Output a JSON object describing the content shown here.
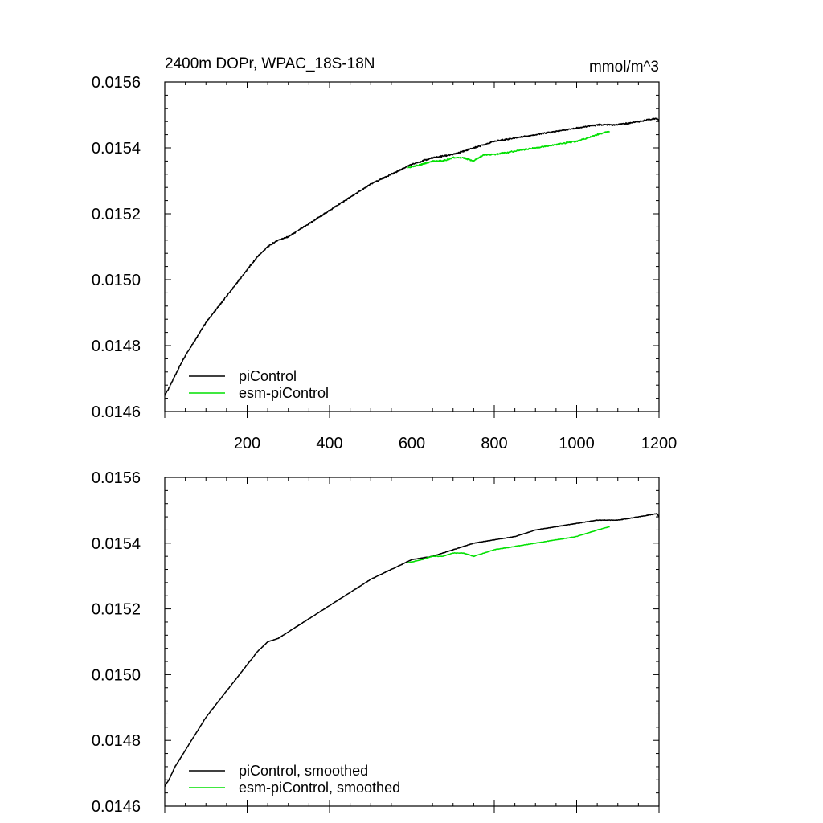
{
  "chart_data": [
    {
      "type": "line",
      "title": "2400m DOPr, WPAC_18S-18N",
      "units": "mmol/m^3",
      "xlim": [
        0,
        1200
      ],
      "ylim": [
        0.0146,
        0.0156
      ],
      "xticks": [
        "200",
        "400",
        "600",
        "800",
        "1000",
        "1200"
      ],
      "yticks": [
        "0.0146",
        "0.0148",
        "0.0150",
        "0.0152",
        "0.0154",
        "0.0156"
      ],
      "legend_position": "bottom-left",
      "series": [
        {
          "name": "piControl",
          "color": "#000000",
          "x": [
            0,
            10,
            25,
            50,
            75,
            100,
            125,
            150,
            175,
            200,
            225,
            250,
            275,
            300,
            350,
            400,
            450,
            500,
            550,
            600,
            650,
            700,
            750,
            800,
            850,
            900,
            950,
            1000,
            1050,
            1100,
            1150,
            1195,
            1200
          ],
          "y": [
            0.01465,
            0.01467,
            0.01471,
            0.01477,
            0.01482,
            0.01487,
            0.01491,
            0.01495,
            0.01499,
            0.01503,
            0.01507,
            0.0151,
            0.01512,
            0.01513,
            0.01517,
            0.01521,
            0.01525,
            0.01529,
            0.01532,
            0.01535,
            0.01537,
            0.01538,
            0.0154,
            0.01542,
            0.01543,
            0.01544,
            0.01545,
            0.01546,
            0.01547,
            0.01547,
            0.01548,
            0.01549,
            0.01548
          ]
        },
        {
          "name": "esm-piControl",
          "color": "#00e000",
          "x": [
            590,
            625,
            650,
            675,
            700,
            725,
            750,
            775,
            800,
            850,
            900,
            950,
            1000,
            1050,
            1080
          ],
          "y": [
            0.01534,
            0.01535,
            0.01536,
            0.01536,
            0.01537,
            0.01537,
            0.01536,
            0.01538,
            0.01538,
            0.01539,
            0.0154,
            0.01541,
            0.01542,
            0.01544,
            0.01545
          ]
        }
      ]
    },
    {
      "type": "line",
      "title": "",
      "xlim": [
        0,
        1200
      ],
      "ylim": [
        0.0146,
        0.0156
      ],
      "yticks": [
        "0.0146",
        "0.0148",
        "0.0150",
        "0.0152",
        "0.0154",
        "0.0156"
      ],
      "legend_position": "bottom-left",
      "series": [
        {
          "name": "piControl, smoothed",
          "color": "#000000",
          "x": [
            0,
            10,
            25,
            50,
            75,
            100,
            125,
            150,
            175,
            200,
            225,
            250,
            275,
            300,
            350,
            400,
            450,
            500,
            550,
            600,
            650,
            700,
            750,
            800,
            850,
            900,
            950,
            1000,
            1050,
            1100,
            1150,
            1195,
            1200
          ],
          "y": [
            0.01466,
            0.01468,
            0.01472,
            0.01477,
            0.01482,
            0.01487,
            0.01491,
            0.01495,
            0.01499,
            0.01503,
            0.01507,
            0.0151,
            0.01511,
            0.01513,
            0.01517,
            0.01521,
            0.01525,
            0.01529,
            0.01532,
            0.01535,
            0.01536,
            0.01538,
            0.0154,
            0.01541,
            0.01542,
            0.01544,
            0.01545,
            0.01546,
            0.01547,
            0.01547,
            0.01548,
            0.01549,
            0.01548
          ]
        },
        {
          "name": "esm-piControl, smoothed",
          "color": "#00e000",
          "x": [
            590,
            625,
            650,
            675,
            700,
            725,
            750,
            775,
            800,
            850,
            900,
            950,
            1000,
            1050,
            1080
          ],
          "y": [
            0.01534,
            0.01535,
            0.01536,
            0.01536,
            0.01537,
            0.01537,
            0.01536,
            0.01537,
            0.01538,
            0.01539,
            0.0154,
            0.01541,
            0.01542,
            0.01544,
            0.01545
          ]
        }
      ]
    }
  ]
}
